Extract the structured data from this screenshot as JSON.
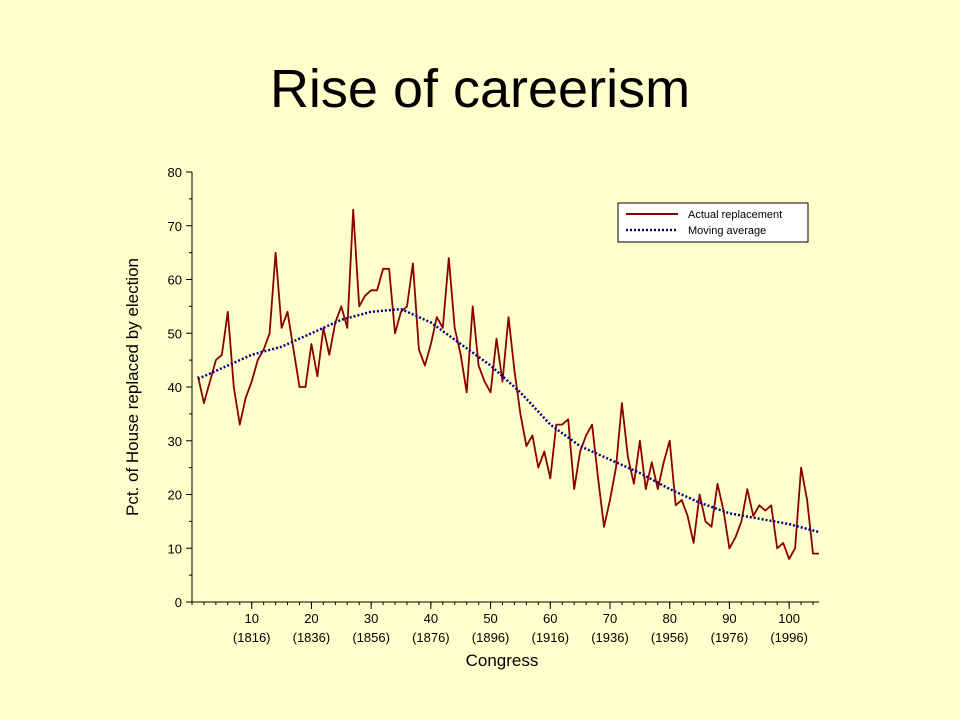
{
  "slide": {
    "title": "Rise of careerism"
  },
  "chart_data": {
    "type": "line",
    "title": "",
    "xlabel": "Congress",
    "ylabel": "Pct. of House replaced by election",
    "xlim": [
      0,
      105
    ],
    "ylim": [
      0,
      80
    ],
    "x_ticks": [
      {
        "value": 10,
        "label": "10",
        "sublabel": "(1816)"
      },
      {
        "value": 20,
        "label": "20",
        "sublabel": "(1836)"
      },
      {
        "value": 30,
        "label": "30",
        "sublabel": "(1856)"
      },
      {
        "value": 40,
        "label": "40",
        "sublabel": "(1876)"
      },
      {
        "value": 50,
        "label": "50",
        "sublabel": "(1896)"
      },
      {
        "value": 60,
        "label": "60",
        "sublabel": "(1916)"
      },
      {
        "value": 70,
        "label": "70",
        "sublabel": "(1936)"
      },
      {
        "value": 80,
        "label": "80",
        "sublabel": "(1956)"
      },
      {
        "value": 90,
        "label": "90",
        "sublabel": "(1976)"
      },
      {
        "value": 100,
        "label": "100",
        "sublabel": "(1996)"
      }
    ],
    "y_ticks": [
      0,
      10,
      20,
      30,
      40,
      50,
      60,
      70,
      80
    ],
    "grid": false,
    "legend_position": "top-right",
    "series": [
      {
        "name": "Actual replacement",
        "color": "#8b0000",
        "style": "solid",
        "x": [
          1,
          2,
          3,
          4,
          5,
          6,
          7,
          8,
          9,
          10,
          11,
          12,
          13,
          14,
          15,
          16,
          17,
          18,
          19,
          20,
          21,
          22,
          23,
          24,
          25,
          26,
          27,
          28,
          29,
          30,
          31,
          32,
          33,
          34,
          35,
          36,
          37,
          38,
          39,
          40,
          41,
          42,
          43,
          44,
          45,
          46,
          47,
          48,
          49,
          50,
          51,
          52,
          53,
          54,
          55,
          56,
          57,
          58,
          59,
          60,
          61,
          62,
          63,
          64,
          65,
          66,
          67,
          68,
          69,
          70,
          71,
          72,
          73,
          74,
          75,
          76,
          77,
          78,
          79,
          80,
          81,
          82,
          83,
          84,
          85,
          86,
          87,
          88,
          89,
          90,
          91,
          92,
          93,
          94,
          95,
          96,
          97,
          98,
          99,
          100,
          101,
          102,
          103,
          104,
          105
        ],
        "values": [
          42,
          37,
          41,
          45,
          46,
          54,
          40,
          33,
          38,
          41,
          45,
          47,
          50,
          65,
          51,
          54,
          47,
          40,
          40,
          48,
          42,
          51,
          46,
          52,
          55,
          51,
          73,
          55,
          57,
          58,
          58,
          62,
          62,
          50,
          54,
          55,
          63,
          47,
          44,
          48,
          53,
          51,
          64,
          51,
          46,
          39,
          55,
          44,
          41,
          39,
          49,
          41,
          53,
          43,
          35,
          29,
          31,
          25,
          28,
          23,
          33,
          33,
          34,
          21,
          28,
          31,
          33,
          23,
          14,
          19,
          25,
          37,
          27,
          22,
          30,
          21,
          26,
          21,
          26,
          30,
          18,
          19,
          16,
          11,
          20,
          15,
          14,
          22,
          17,
          10,
          12,
          15,
          21,
          16,
          18,
          17,
          18,
          10,
          11,
          8,
          10,
          25,
          19,
          9,
          9
        ]
      },
      {
        "name": "Moving average",
        "color": "#00008b",
        "style": "dotted",
        "x": [
          1,
          5,
          10,
          15,
          20,
          25,
          30,
          35,
          40,
          45,
          50,
          55,
          60,
          65,
          70,
          75,
          80,
          85,
          90,
          95,
          100,
          105
        ],
        "values": [
          41.5,
          43.5,
          46,
          47.5,
          50,
          52.5,
          54,
          54.5,
          52,
          48,
          44,
          39,
          33,
          29,
          26.5,
          24,
          21,
          18.5,
          16.5,
          15.5,
          14.5,
          13
        ]
      }
    ]
  }
}
